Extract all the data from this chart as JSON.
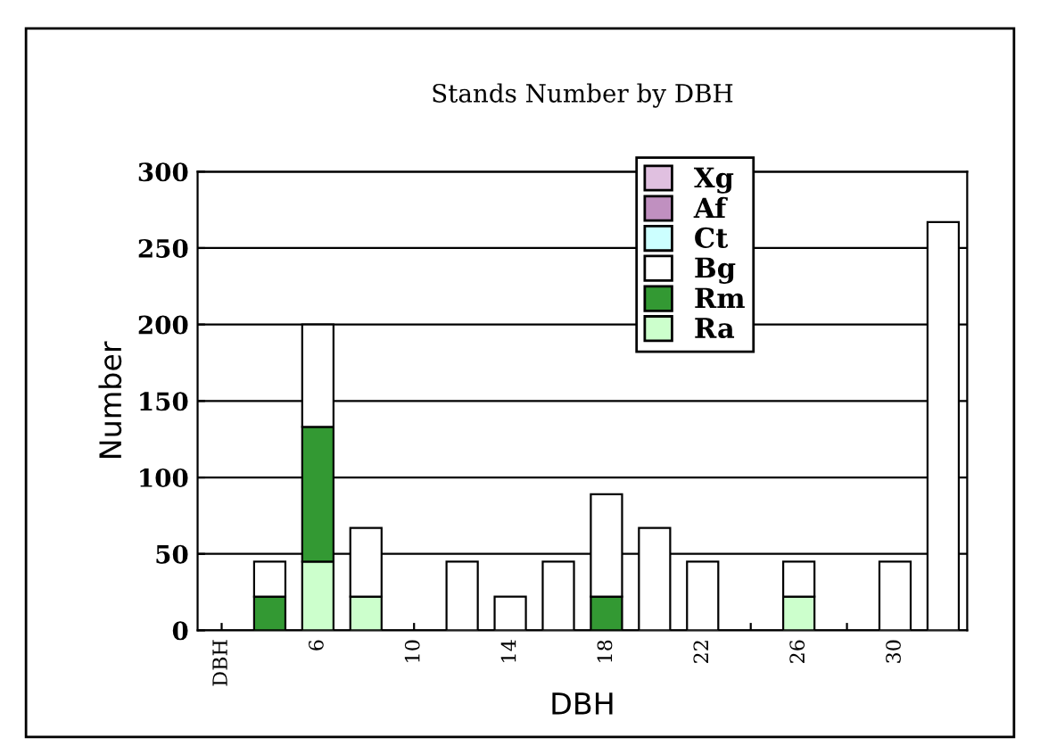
{
  "chart_data": {
    "type": "bar",
    "stacked": true,
    "title": "Stands Number by DBH",
    "xlabel": "DBH",
    "ylabel": "Number",
    "categories": [
      "DBH",
      null,
      "6",
      null,
      "10",
      null,
      "14",
      null,
      "18",
      null,
      "22",
      null,
      "26",
      null,
      "30",
      null
    ],
    "series": [
      {
        "name": "Ra",
        "color": "#ccffcc",
        "values": [
          null,
          null,
          45,
          22,
          null,
          null,
          null,
          null,
          null,
          null,
          null,
          null,
          22,
          null,
          null,
          null
        ]
      },
      {
        "name": "Rm",
        "color": "#339933",
        "values": [
          null,
          22,
          88,
          null,
          null,
          null,
          null,
          null,
          22,
          null,
          null,
          null,
          null,
          null,
          null,
          null
        ]
      },
      {
        "name": "Bg",
        "color": "#ffffff",
        "values": [
          null,
          23,
          67,
          45,
          null,
          45,
          22,
          45,
          67,
          67,
          45,
          null,
          23,
          null,
          45,
          267
        ]
      },
      {
        "name": "Ct",
        "color": "#ccffff",
        "values": [
          null,
          null,
          null,
          null,
          null,
          null,
          null,
          null,
          null,
          null,
          null,
          null,
          null,
          null,
          null,
          null
        ]
      },
      {
        "name": "Af",
        "color": "#c090c0",
        "values": [
          null,
          null,
          null,
          null,
          null,
          null,
          null,
          null,
          null,
          null,
          null,
          null,
          null,
          null,
          null,
          null
        ]
      },
      {
        "name": "Xg",
        "color": "#e0c0e0",
        "values": [
          null,
          null,
          null,
          null,
          null,
          null,
          null,
          null,
          null,
          null,
          null,
          null,
          null,
          null,
          null,
          null
        ]
      }
    ],
    "ylim": [
      0,
      300
    ],
    "yticks": [
      0,
      50,
      100,
      150,
      200,
      250,
      300
    ],
    "grid": "y",
    "legend": "top right"
  }
}
